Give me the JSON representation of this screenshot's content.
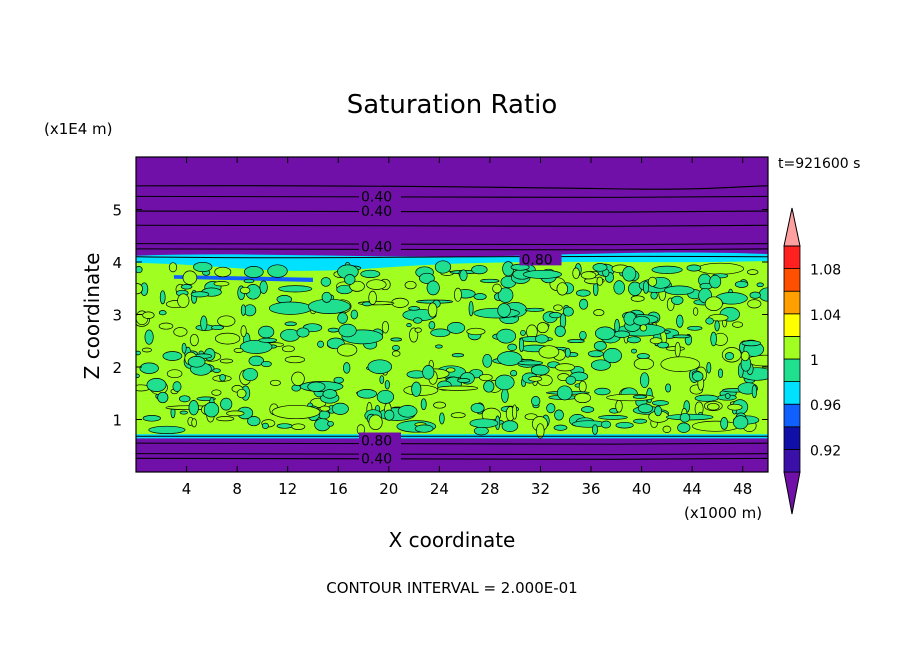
{
  "chart_data": {
    "type": "heatmap",
    "title": "Saturation Ratio",
    "xlabel": "X coordinate",
    "ylabel": "Z coordinate",
    "x_unit": "(x1000 m)",
    "y_unit": "(x1E4 m)",
    "time_label": "t=921600 s",
    "footer": "CONTOUR INTERVAL = 2.000E-01",
    "xlim": [
      0,
      50
    ],
    "ylim": [
      0,
      6
    ],
    "x_ticks": [
      4,
      8,
      12,
      16,
      20,
      24,
      28,
      32,
      36,
      40,
      44,
      48
    ],
    "y_ticks": [
      1,
      2,
      3,
      4,
      5
    ],
    "colorbar": {
      "levels": [
        0.9,
        0.92,
        0.94,
        0.96,
        0.98,
        1.0,
        1.02,
        1.04,
        1.06,
        1.08,
        1.1
      ],
      "tick_labels": [
        "1.08",
        "1.04",
        "1",
        "0.96",
        "0.92"
      ],
      "colors": [
        "#7010a8",
        "#3a10a8",
        "#1010a8",
        "#1060ff",
        "#00e0ff",
        "#20e090",
        "#a0ff20",
        "#ffff00",
        "#ffa000",
        "#ff5000",
        "#ff2020",
        "#ffa0a0"
      ]
    },
    "contour_labels": [
      {
        "text": "0.40",
        "x": 17.8,
        "y": 5.25
      },
      {
        "text": "0.40",
        "x": 17.8,
        "y": 4.97
      },
      {
        "text": "0.40",
        "x": 17.8,
        "y": 4.3
      },
      {
        "text": "0.80",
        "x": 30.5,
        "y": 4.05
      },
      {
        "text": "0.80",
        "x": 17.8,
        "y": 0.6
      },
      {
        "text": "0.40",
        "x": 17.8,
        "y": 0.26
      }
    ]
  }
}
